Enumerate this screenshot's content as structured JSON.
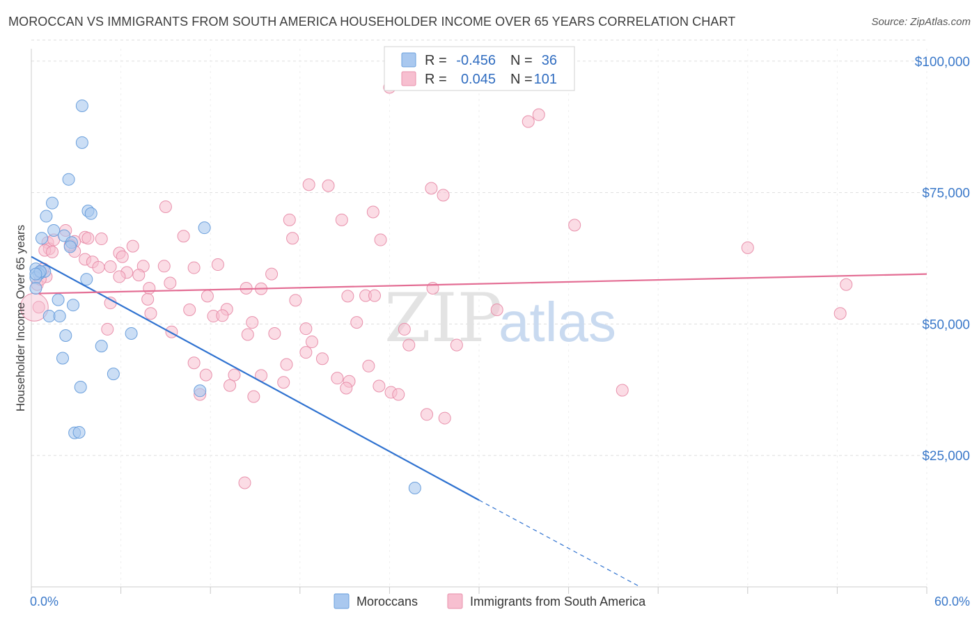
{
  "title": "MOROCCAN VS IMMIGRANTS FROM SOUTH AMERICA HOUSEHOLDER INCOME OVER 65 YEARS CORRELATION CHART",
  "source": "Source: ZipAtlas.com",
  "watermark": {
    "part1": "ZIP",
    "part2": "atlas"
  },
  "colors": {
    "blue_fill": "#a9c8ef",
    "blue_stroke": "#6a9fdc",
    "blue_line": "#2f72d0",
    "pink_fill": "#f7bfd0",
    "pink_stroke": "#e890ab",
    "pink_line": "#e36c93",
    "grid": "#dddddd",
    "axis_text": "#3a78c9"
  },
  "legend": {
    "rows": [
      {
        "r_label": "R =",
        "r_value": "-0.456",
        "n_label": "N =",
        "n_value": "36"
      },
      {
        "r_label": "R =",
        "r_value": "0.045",
        "n_label": "N =",
        "n_value": "101"
      }
    ]
  },
  "bottom_legend": {
    "series1": "Moroccans",
    "series2": "Immigrants from South America"
  },
  "chart_data": {
    "type": "scatter",
    "title": "MOROCCAN VS IMMIGRANTS FROM SOUTH AMERICA HOUSEHOLDER INCOME OVER 65 YEARS CORRELATION CHART",
    "xlabel": "",
    "ylabel": "Householder Income Over 65 years",
    "xlim": [
      0,
      60
    ],
    "ylim": [
      0,
      105000
    ],
    "x_tick_labels": {
      "min": "0.0%",
      "max": "60.0%"
    },
    "y_ticks": [
      {
        "value": 25000,
        "label": "$25,000"
      },
      {
        "value": 50000,
        "label": "$50,000"
      },
      {
        "value": 75000,
        "label": "$75,000"
      },
      {
        "value": 100000,
        "label": "$100,000"
      }
    ],
    "grid": true,
    "series": [
      {
        "name": "Moroccans",
        "color": "blue",
        "R": -0.456,
        "N": 36,
        "trend": {
          "x_solid": [
            0,
            30
          ],
          "y_solid": [
            62800,
            16500
          ],
          "x_dashed": [
            30,
            40.8
          ],
          "y_dashed": [
            16500,
            0
          ]
        },
        "points": [
          [
            3.4,
            91500
          ],
          [
            3.4,
            84500
          ],
          [
            2.5,
            77500
          ],
          [
            1.4,
            73000
          ],
          [
            3.8,
            71500
          ],
          [
            1.0,
            70500
          ],
          [
            4.0,
            71000
          ],
          [
            11.6,
            68300
          ],
          [
            1.5,
            67800
          ],
          [
            2.2,
            66800
          ],
          [
            0.7,
            66300
          ],
          [
            2.7,
            65500
          ],
          [
            2.6,
            64700
          ],
          [
            0.3,
            60500
          ],
          [
            0.6,
            59800
          ],
          [
            0.9,
            60000
          ],
          [
            0.5,
            59500
          ],
          [
            0.3,
            58800
          ],
          [
            3.7,
            58500
          ],
          [
            0.3,
            56800
          ],
          [
            1.8,
            54600
          ],
          [
            2.8,
            53600
          ],
          [
            1.2,
            51500
          ],
          [
            1.9,
            51500
          ],
          [
            6.7,
            48200
          ],
          [
            2.3,
            47800
          ],
          [
            4.7,
            45800
          ],
          [
            2.1,
            43500
          ],
          [
            5.5,
            40500
          ],
          [
            3.3,
            38000
          ],
          [
            11.3,
            37300
          ],
          [
            2.9,
            29300
          ],
          [
            3.2,
            29400
          ],
          [
            25.7,
            18800
          ],
          [
            0.6,
            60000
          ],
          [
            0.3,
            59500
          ]
        ]
      },
      {
        "name": "Immigrants from South America",
        "color": "pink",
        "R": 0.045,
        "N": 101,
        "trend": {
          "x": [
            0.5,
            60
          ],
          "y": [
            55800,
            59500
          ]
        },
        "points": [
          [
            24.0,
            95000
          ],
          [
            34.0,
            89800
          ],
          [
            33.3,
            88500
          ],
          [
            18.6,
            76500
          ],
          [
            19.9,
            76300
          ],
          [
            26.8,
            75800
          ],
          [
            27.6,
            74500
          ],
          [
            9.0,
            72300
          ],
          [
            22.9,
            71300
          ],
          [
            17.3,
            69800
          ],
          [
            20.8,
            69800
          ],
          [
            36.4,
            68800
          ],
          [
            2.3,
            67800
          ],
          [
            10.2,
            66700
          ],
          [
            3.6,
            66500
          ],
          [
            3.8,
            66300
          ],
          [
            4.7,
            66200
          ],
          [
            17.5,
            66300
          ],
          [
            23.4,
            66000
          ],
          [
            1.1,
            65500
          ],
          [
            2.9,
            65700
          ],
          [
            6.8,
            64800
          ],
          [
            48.0,
            64500
          ],
          [
            1.2,
            64300
          ],
          [
            0.9,
            64000
          ],
          [
            1.4,
            63700
          ],
          [
            2.9,
            63800
          ],
          [
            5.9,
            63500
          ],
          [
            6.1,
            62800
          ],
          [
            3.6,
            62300
          ],
          [
            4.1,
            61800
          ],
          [
            12.5,
            61300
          ],
          [
            7.5,
            61000
          ],
          [
            8.9,
            61000
          ],
          [
            4.5,
            60800
          ],
          [
            5.3,
            60900
          ],
          [
            10.9,
            60700
          ],
          [
            6.4,
            59800
          ],
          [
            16.1,
            59500
          ],
          [
            7.2,
            59300
          ],
          [
            5.9,
            59000
          ],
          [
            9.3,
            57800
          ],
          [
            54.6,
            57500
          ],
          [
            7.9,
            56800
          ],
          [
            14.4,
            56800
          ],
          [
            15.4,
            56700
          ],
          [
            26.9,
            56800
          ],
          [
            11.8,
            55300
          ],
          [
            21.2,
            55300
          ],
          [
            22.4,
            55400
          ],
          [
            23.0,
            55400
          ],
          [
            7.8,
            54700
          ],
          [
            17.7,
            54500
          ],
          [
            5.3,
            54000
          ],
          [
            13.1,
            52800
          ],
          [
            10.6,
            52700
          ],
          [
            31.2,
            52700
          ],
          [
            8.0,
            52000
          ],
          [
            54.2,
            52000
          ],
          [
            12.2,
            51500
          ],
          [
            12.8,
            51600
          ],
          [
            14.8,
            50300
          ],
          [
            21.8,
            50300
          ],
          [
            5.1,
            49000
          ],
          [
            18.4,
            49100
          ],
          [
            25.0,
            49000
          ],
          [
            9.4,
            48500
          ],
          [
            14.5,
            48000
          ],
          [
            16.3,
            48200
          ],
          [
            18.8,
            46600
          ],
          [
            25.3,
            46000
          ],
          [
            28.5,
            46000
          ],
          [
            18.4,
            44600
          ],
          [
            19.5,
            43400
          ],
          [
            10.9,
            42600
          ],
          [
            17.1,
            42300
          ],
          [
            22.6,
            42000
          ],
          [
            11.7,
            40300
          ],
          [
            13.6,
            40300
          ],
          [
            15.4,
            40200
          ],
          [
            20.5,
            39700
          ],
          [
            21.3,
            39100
          ],
          [
            16.9,
            38900
          ],
          [
            13.3,
            38300
          ],
          [
            23.3,
            38200
          ],
          [
            21.1,
            37800
          ],
          [
            39.6,
            37400
          ],
          [
            24.1,
            37000
          ],
          [
            24.6,
            36600
          ],
          [
            11.3,
            36600
          ],
          [
            14.9,
            36200
          ],
          [
            26.5,
            32800
          ],
          [
            27.7,
            32100
          ],
          [
            14.3,
            19800
          ],
          [
            0.5,
            53200
          ],
          [
            0.4,
            57500
          ],
          [
            1.0,
            59000
          ],
          [
            0.8,
            60500
          ],
          [
            0.6,
            58500
          ],
          [
            1.5,
            66000
          ],
          [
            2.6,
            65000
          ]
        ]
      }
    ]
  }
}
